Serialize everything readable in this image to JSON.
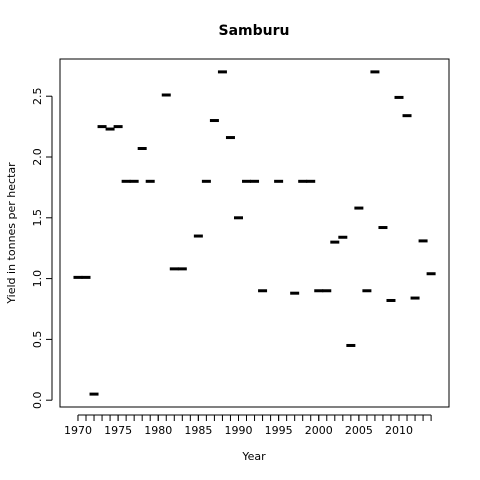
{
  "chart_data": {
    "type": "scatter",
    "title": "Samburu",
    "xlabel": "Year",
    "ylabel": "Yield in tonnes per hectar",
    "x": [
      1970,
      1971,
      1972,
      1973,
      1974,
      1975,
      1976,
      1977,
      1978,
      1979,
      1980,
      1981,
      1982,
      1983,
      1984,
      1985,
      1986,
      1987,
      1988,
      1989,
      1990,
      1991,
      1992,
      1993,
      1994,
      1995,
      1996,
      1997,
      1998,
      1999,
      2000,
      2001,
      2002,
      2003,
      2004,
      2005,
      2006,
      2007,
      2008,
      2009,
      2010,
      2011,
      2012,
      2013,
      2014
    ],
    "values": [
      1.01,
      1.01,
      0.05,
      2.25,
      2.23,
      2.25,
      1.8,
      1.8,
      2.07,
      1.8,
      null,
      2.51,
      1.08,
      1.08,
      null,
      1.35,
      1.8,
      2.3,
      2.7,
      2.16,
      1.5,
      1.8,
      1.8,
      0.9,
      null,
      1.8,
      null,
      0.88,
      1.8,
      1.8,
      0.9,
      0.9,
      1.3,
      1.34,
      0.45,
      1.58,
      0.9,
      2.7,
      1.42,
      0.82,
      2.49,
      2.34,
      0.84,
      1.31,
      1.04
    ],
    "color": "#000000",
    "xlim": [
      1967.76,
      2016.23
    ],
    "xticks": [
      1970,
      1975,
      1980,
      1985,
      1990,
      1995,
      2000,
      2005,
      2010
    ],
    "ylim": [
      -0.056,
      2.806
    ],
    "yticks": [
      {
        "value": 0,
        "label": "0.0"
      },
      0.5,
      {
        "value": 1,
        "label": "1.0"
      },
      1.5,
      {
        "value": 2,
        "label": "2.0"
      },
      2.5
    ],
    "grid": false
  }
}
